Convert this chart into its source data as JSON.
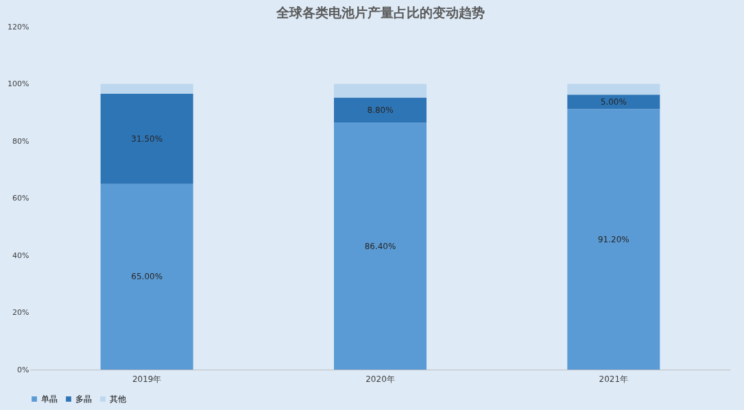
{
  "chart_data": {
    "type": "bar",
    "title": "全球各类电池片产量占比的变动趋势",
    "categories": [
      "2019年",
      "2020年",
      "2021年"
    ],
    "stacked": true,
    "series": [
      {
        "name": "单晶",
        "color": "#5b9bd5",
        "values": [
          65.0,
          86.4,
          91.2
        ],
        "value_labels": [
          "65.00%",
          "86.40%",
          "91.20%"
        ]
      },
      {
        "name": "多晶",
        "color": "#2e75b6",
        "values": [
          31.5,
          8.8,
          5.0
        ],
        "value_labels": [
          "31.50%",
          "8.80%",
          "5.00%"
        ]
      },
      {
        "name": "其他",
        "color": "#bdd7ee",
        "values": [
          3.5,
          4.8,
          3.8
        ]
      }
    ],
    "ylim": [
      0,
      120
    ],
    "yticks": [
      {
        "value": 0,
        "label": "0%"
      },
      {
        "value": 20,
        "label": "20%"
      },
      {
        "value": 40,
        "label": "40%"
      },
      {
        "value": 60,
        "label": "60%"
      },
      {
        "value": 80,
        "label": "80%"
      },
      {
        "value": 100,
        "label": "100%"
      },
      {
        "value": 120,
        "label": "120%"
      }
    ],
    "grid": false,
    "legend": "bottom"
  }
}
